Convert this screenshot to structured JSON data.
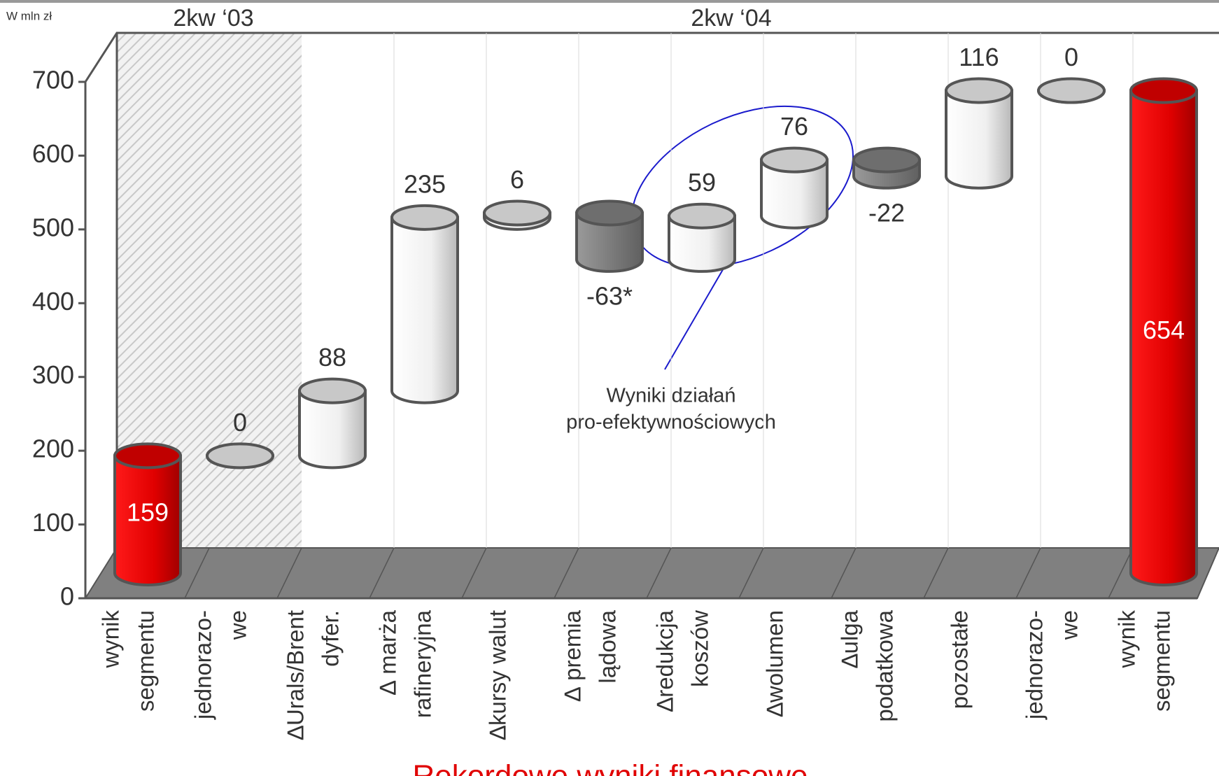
{
  "chart_data": {
    "type": "waterfall",
    "title": "Rekordowe wyniki finansowe",
    "unit_label": "W mln zł",
    "period_labels": [
      "2kw ‘03",
      "2kw ‘04"
    ],
    "annotation": [
      "Wyniki działań",
      "pro-efektywnościowych"
    ],
    "categories": [
      [
        "wynik",
        "segmentu"
      ],
      [
        "jednorazo-",
        "we"
      ],
      [
        "∆Urals/Brent",
        "dyfer."
      ],
      [
        "∆ marża",
        "rafineryjna"
      ],
      [
        "∆kursy walut"
      ],
      [
        "∆ premia",
        "lądowa"
      ],
      [
        "∆redukcja",
        "koszów"
      ],
      [
        "∆wolumen"
      ],
      [
        "∆ulga",
        "podatkowa"
      ],
      [
        "pozostałe"
      ],
      [
        "jednorazo-",
        "we"
      ],
      [
        "wynik",
        "segmentu"
      ]
    ],
    "values": [
      159,
      0,
      88,
      235,
      6,
      -63,
      59,
      76,
      -22,
      116,
      0,
      654
    ],
    "value_labels": [
      "159",
      "0",
      "88",
      "235",
      "6",
      "-63*",
      "59",
      "76",
      "-22",
      "116",
      "0",
      "654"
    ],
    "total_color": "#e00000",
    "increase_color": "#f4f4f4",
    "decrease_color": "#808080",
    "ylim": [
      0,
      700
    ],
    "yticks": [
      0,
      100,
      200,
      300,
      400,
      500,
      600,
      700
    ]
  }
}
